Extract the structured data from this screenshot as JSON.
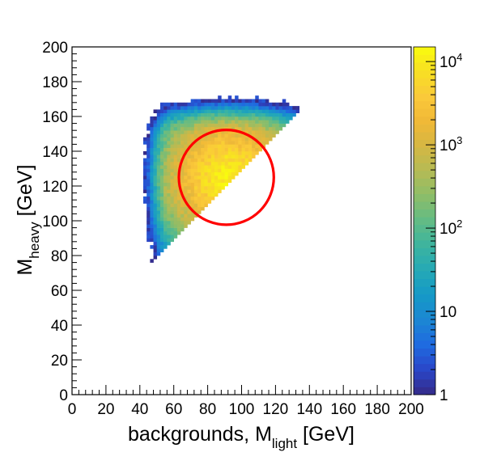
{
  "chart_data": {
    "type": "heatmap",
    "title": "",
    "xlabel": {
      "main": "backgrounds, M",
      "sub": "light",
      "unit": " [GeV]"
    },
    "ylabel": {
      "main": "M",
      "sub": "heavy",
      "unit": " [GeV]"
    },
    "xlim": [
      0,
      200
    ],
    "ylim": [
      0,
      200
    ],
    "x_ticks": [
      "0",
      "20",
      "40",
      "60",
      "80",
      "100",
      "120",
      "140",
      "160",
      "180",
      "200"
    ],
    "y_ticks": [
      "0",
      "20",
      "40",
      "60",
      "80",
      "100",
      "120",
      "140",
      "160",
      "180",
      "200"
    ],
    "z_scale": "log",
    "zlim": [
      1,
      15000
    ],
    "z_ticks": [
      {
        "value": 1,
        "label": "1"
      },
      {
        "value": 10,
        "label": "10"
      },
      {
        "value": 100,
        "label": "10",
        "exp": "2"
      },
      {
        "value": 1000,
        "label": "10",
        "exp": "3"
      },
      {
        "value": 10000,
        "label": "10",
        "exp": "4"
      }
    ],
    "palette": [
      "#352a87",
      "#2a46c8",
      "#1f6ae0",
      "#1c86d3",
      "#1599c7",
      "#25a9b6",
      "#3cb49f",
      "#62bb85",
      "#8cbd69",
      "#b4bb55",
      "#d5b743",
      "#f0b837",
      "#fac93a",
      "#f8df24",
      "#f9fb0e"
    ],
    "distribution": {
      "peak": {
        "x": 92,
        "y": 125,
        "count": 12000
      },
      "lower_edge_line": "y = x + 30",
      "populated_x_range": [
        44,
        130
      ],
      "populated_y_range": [
        66,
        172
      ]
    },
    "signal_region": {
      "shape": "circle",
      "center_x": 91,
      "center_y": 125,
      "radius_gev": 28,
      "color": "#ff0000"
    }
  }
}
